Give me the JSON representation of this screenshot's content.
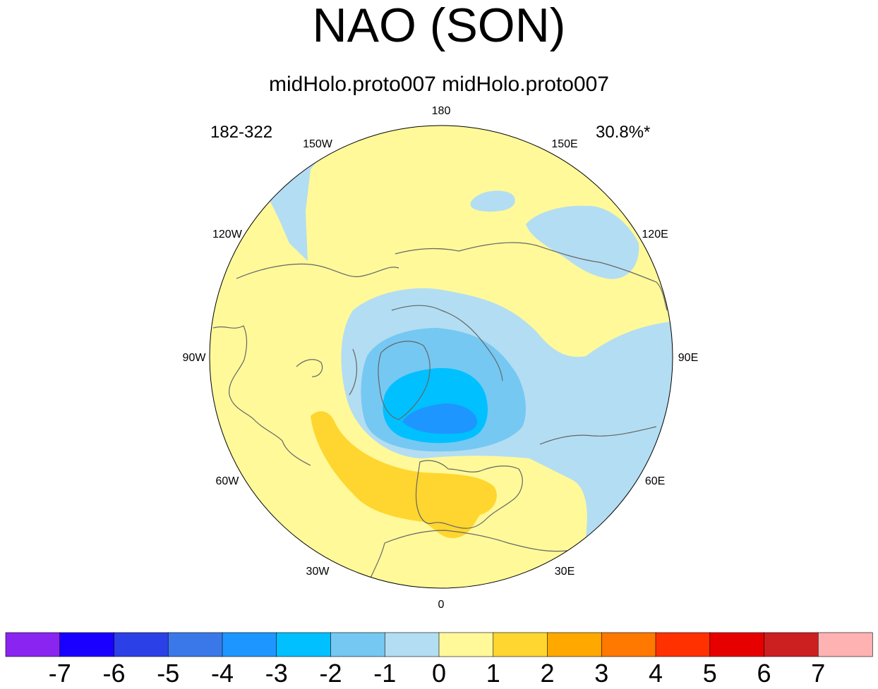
{
  "title": "NAO (SON)",
  "subtitle": "midHolo.proto007  midHolo.proto007",
  "left_annotation": "182-322",
  "right_annotation": "30.8%*",
  "chart_data": {
    "type": "heatmap",
    "projection": "north-polar-stereographic",
    "title": "NAO (SON)",
    "subtitle": "midHolo.proto007  midHolo.proto007",
    "annotations": [
      "182-322",
      "30.8%*"
    ],
    "longitude_labels": [
      {
        "lon": 180,
        "text": "180"
      },
      {
        "lon": 150,
        "text": "150E"
      },
      {
        "lon": 120,
        "text": "120E"
      },
      {
        "lon": 90,
        "text": "90E"
      },
      {
        "lon": 60,
        "text": "60E"
      },
      {
        "lon": 30,
        "text": "30E"
      },
      {
        "lon": 0,
        "text": "0"
      },
      {
        "lon": -30,
        "text": "30W"
      },
      {
        "lon": -60,
        "text": "60W"
      },
      {
        "lon": -90,
        "text": "90W"
      },
      {
        "lon": -120,
        "text": "120W"
      },
      {
        "lon": -150,
        "text": "150W"
      }
    ],
    "colorbar": {
      "levels": [
        -7,
        -6,
        -5,
        -4,
        -3,
        -2,
        -1,
        0,
        1,
        2,
        3,
        4,
        5,
        6,
        7
      ],
      "level_labels": [
        "-7",
        "-6",
        "-5",
        "-4",
        "-3",
        "-2",
        "-1",
        "0",
        "1",
        "2",
        "3",
        "4",
        "5",
        "6",
        "7"
      ],
      "colors": [
        "#8a24f0",
        "#1a00ff",
        "#2c40e8",
        "#3a78ea",
        "#1e96ff",
        "#00c0ff",
        "#75c8f2",
        "#b3ddf2",
        "#fff99a",
        "#ffd62f",
        "#ffa800",
        "#ff7800",
        "#ff3100",
        "#e60000",
        "#cc1f1f",
        "#ffb2b2"
      ]
    },
    "features": [
      {
        "name": "min-center-arctic-greenland",
        "approx_value_min": -4,
        "approx_value_max": -3
      },
      {
        "name": "positive-band-north-atlantic-europe",
        "approx_value_min": 1,
        "approx_value_max": 2
      },
      {
        "name": "negative-region-north-pacific",
        "approx_value_min": -1,
        "approx_value_max": 0
      },
      {
        "name": "negative-region-east-siberia",
        "approx_value_min": -1,
        "approx_value_max": 0
      },
      {
        "name": "negative-region-central-asia",
        "approx_value_min": -1,
        "approx_value_max": 0
      }
    ]
  }
}
